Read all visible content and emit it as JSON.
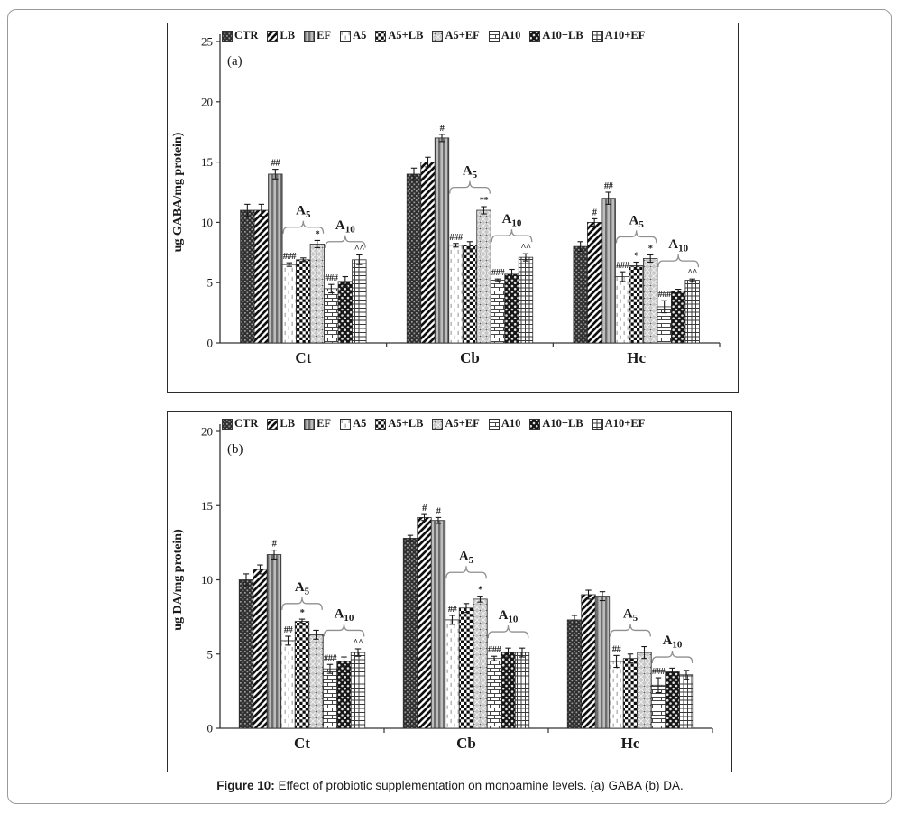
{
  "figure": {
    "caption_label": "Figure 10:",
    "caption_text": " Effect of probiotic supplementation on monoamine levels. (a) GABA (b) DA."
  },
  "palette": {
    "bar_outline": "#2b2b2b",
    "axis": "#333333",
    "bracket_gray": "#8f8f8f",
    "text": "#1a1a1a",
    "frame_gray": "#9a9a9a"
  },
  "legend_labels": [
    "CTR",
    "LB",
    "EF",
    "A5",
    "A5+LB",
    "A5+EF",
    "A10",
    "A10+LB",
    "A10+EF"
  ],
  "chart_data": [
    {
      "id": "a",
      "type": "bar",
      "panel_label": "(a)",
      "title": "",
      "xlabel": "",
      "ylabel": "ug GABA/mg protein)",
      "ylim": [
        0,
        25
      ],
      "yticks": [
        0,
        5,
        10,
        15,
        20,
        25
      ],
      "categories": [
        "Ct",
        "Cb",
        "Hc"
      ],
      "series_names": [
        "CTR",
        "LB",
        "EF",
        "A5",
        "A5+LB",
        "A5+EF",
        "A10",
        "A10+LB",
        "A10+EF"
      ],
      "groups": [
        {
          "label": "Ct",
          "values": [
            11.0,
            11.0,
            14.0,
            6.5,
            6.9,
            8.2,
            4.5,
            5.1,
            6.9
          ],
          "errors": [
            0.5,
            0.5,
            0.4,
            0.15,
            0.15,
            0.3,
            0.35,
            0.4,
            0.4
          ],
          "sig": [
            "",
            "",
            "##",
            "###",
            "",
            "*",
            "###",
            "",
            "^^"
          ],
          "brackets": [
            {
              "text": "A",
              "sub": "5",
              "from": 3,
              "to": 5,
              "y": 9.6
            },
            {
              "text": "A",
              "sub": "10",
              "from": 6,
              "to": 8,
              "y": 8.4
            }
          ]
        },
        {
          "label": "Cb",
          "values": [
            14.0,
            15.0,
            17.0,
            8.1,
            8.1,
            11.0,
            5.2,
            5.7,
            7.1
          ],
          "errors": [
            0.5,
            0.4,
            0.3,
            0.15,
            0.3,
            0.3,
            0.1,
            0.4,
            0.3
          ],
          "sig": [
            "",
            "",
            "#",
            "###",
            "",
            "**",
            "###",
            "",
            "^^"
          ],
          "brackets": [
            {
              "text": "A",
              "sub": "5",
              "from": 3,
              "to": 5,
              "y": 12.9
            },
            {
              "text": "A",
              "sub": "10",
              "from": 6,
              "to": 8,
              "y": 8.9
            }
          ]
        },
        {
          "label": "Hc",
          "values": [
            8.0,
            10.0,
            12.0,
            5.5,
            6.4,
            7.0,
            3.0,
            4.3,
            5.2
          ],
          "errors": [
            0.4,
            0.3,
            0.5,
            0.4,
            0.3,
            0.3,
            0.5,
            0.15,
            0.1
          ],
          "sig": [
            "",
            "#",
            "##",
            "###",
            "*",
            "*",
            "###",
            "",
            "^^"
          ],
          "brackets": [
            {
              "text": "A",
              "sub": "5",
              "from": 3,
              "to": 5,
              "y": 8.8
            },
            {
              "text": "A",
              "sub": "10",
              "from": 6,
              "to": 8,
              "y": 6.8
            }
          ]
        }
      ]
    },
    {
      "id": "b",
      "type": "bar",
      "panel_label": "(b)",
      "title": "",
      "xlabel": "",
      "ylabel": "ug DA/mg protein)",
      "ylim": [
        0,
        20
      ],
      "yticks": [
        0,
        5,
        10,
        15,
        20
      ],
      "categories": [
        "Ct",
        "Cb",
        "Hc"
      ],
      "series_names": [
        "CTR",
        "LB",
        "EF",
        "A5",
        "A5+LB",
        "A5+EF",
        "A10",
        "A10+LB",
        "A10+EF"
      ],
      "groups": [
        {
          "label": "Ct",
          "values": [
            10.0,
            10.7,
            11.7,
            5.9,
            7.2,
            6.3,
            4.0,
            4.5,
            5.1
          ],
          "errors": [
            0.4,
            0.3,
            0.3,
            0.3,
            0.15,
            0.3,
            0.3,
            0.3,
            0.25
          ],
          "sig": [
            "",
            "",
            "#",
            "##",
            "*",
            "",
            "###",
            "",
            "^^"
          ],
          "brackets": [
            {
              "text": "A",
              "sub": "5",
              "from": 3,
              "to": 5,
              "y": 8.4
            },
            {
              "text": "A",
              "sub": "10",
              "from": 6,
              "to": 8,
              "y": 6.6
            }
          ]
        },
        {
          "label": "Cb",
          "values": [
            12.8,
            14.2,
            14.0,
            7.3,
            8.1,
            8.7,
            4.7,
            5.1,
            5.1
          ],
          "errors": [
            0.2,
            0.2,
            0.2,
            0.3,
            0.3,
            0.2,
            0.15,
            0.3,
            0.3
          ],
          "sig": [
            "",
            "#",
            "#",
            "##",
            "",
            "*",
            "###",
            "",
            ""
          ],
          "brackets": [
            {
              "text": "A",
              "sub": "5",
              "from": 3,
              "to": 5,
              "y": 10.5
            },
            {
              "text": "A",
              "sub": "10",
              "from": 6,
              "to": 8,
              "y": 6.5
            }
          ]
        },
        {
          "label": "Hc",
          "values": [
            7.3,
            9.0,
            8.9,
            4.5,
            4.7,
            5.1,
            2.9,
            3.8,
            3.6
          ],
          "errors": [
            0.3,
            0.3,
            0.3,
            0.4,
            0.3,
            0.4,
            0.5,
            0.25,
            0.3
          ],
          "sig": [
            "",
            "",
            "",
            "##",
            "",
            "",
            "###",
            "",
            ""
          ],
          "brackets": [
            {
              "text": "A",
              "sub": "5",
              "from": 3,
              "to": 5,
              "y": 6.6
            },
            {
              "text": "A",
              "sub": "10",
              "from": 6,
              "to": 8,
              "y": 4.8
            }
          ]
        }
      ]
    }
  ]
}
